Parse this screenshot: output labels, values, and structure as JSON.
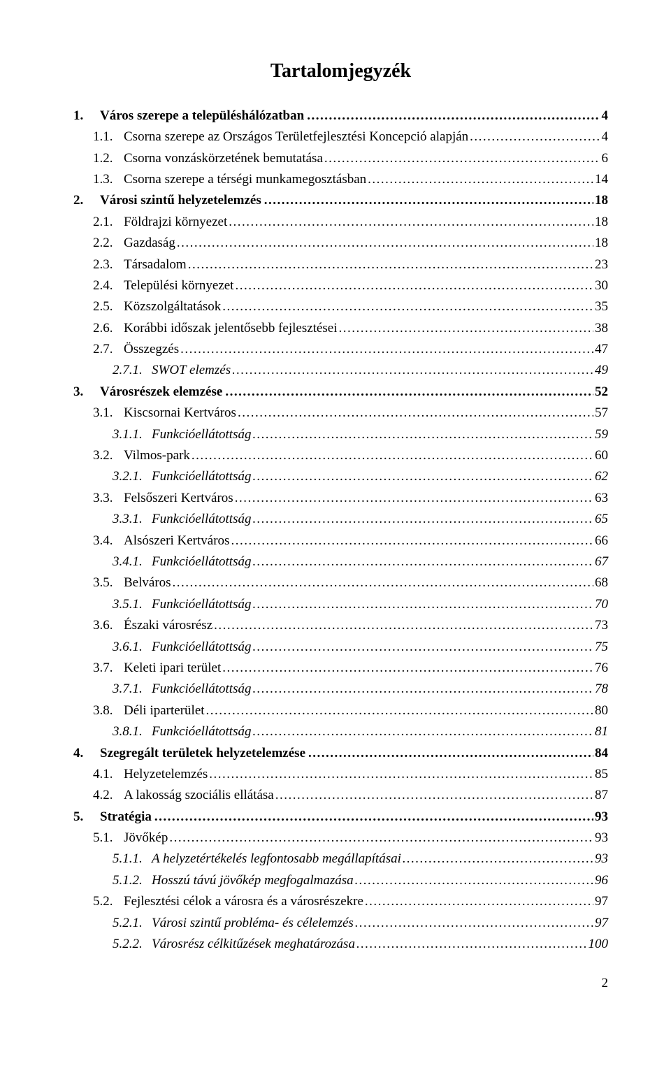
{
  "title": "Tartalomjegyzék",
  "page_number": "2",
  "entries": [
    {
      "level": 1,
      "num": "1.",
      "text": "Város szerepe a településhálózatban",
      "page": "4"
    },
    {
      "level": 2,
      "num": "1.1.",
      "text": "Csorna szerepe az Országos Területfejlesztési Koncepció alapján",
      "page": "4"
    },
    {
      "level": 2,
      "num": "1.2.",
      "text": "Csorna vonzáskörzetének bemutatása",
      "page": "6"
    },
    {
      "level": 2,
      "num": "1.3.",
      "text": "Csorna szerepe a térségi munkamegosztásban",
      "page": "14"
    },
    {
      "level": 1,
      "num": "2.",
      "text": "Városi szintű helyzetelemzés",
      "page": "18"
    },
    {
      "level": 2,
      "num": "2.1.",
      "text": "Földrajzi környezet",
      "page": "18"
    },
    {
      "level": 2,
      "num": "2.2.",
      "text": "Gazdaság",
      "page": "18"
    },
    {
      "level": 2,
      "num": "2.3.",
      "text": "Társadalom",
      "page": "23"
    },
    {
      "level": 2,
      "num": "2.4.",
      "text": "Települési környezet",
      "page": "30"
    },
    {
      "level": 2,
      "num": "2.5.",
      "text": "Közszolgáltatások",
      "page": "35"
    },
    {
      "level": 2,
      "num": "2.6.",
      "text": "Korábbi időszak jelentősebb fejlesztései",
      "page": "38"
    },
    {
      "level": 2,
      "num": "2.7.",
      "text": "Összegzés",
      "page": "47"
    },
    {
      "level": 3,
      "num": "2.7.1.",
      "text": "SWOT elemzés",
      "page": "49"
    },
    {
      "level": 1,
      "num": "3.",
      "text": "Városrészek elemzése",
      "page": "52"
    },
    {
      "level": 2,
      "num": "3.1.",
      "text": "Kiscsornai Kertváros",
      "page": "57"
    },
    {
      "level": 3,
      "num": "3.1.1.",
      "text": "Funkcióellátottság",
      "page": "59"
    },
    {
      "level": 2,
      "num": "3.2.",
      "text": "Vilmos-park",
      "page": "60"
    },
    {
      "level": 3,
      "num": "3.2.1.",
      "text": "Funkcióellátottság",
      "page": "62"
    },
    {
      "level": 2,
      "num": "3.3.",
      "text": "Felsőszeri Kertváros",
      "page": "63"
    },
    {
      "level": 3,
      "num": "3.3.1.",
      "text": "Funkcióellátottság",
      "page": "65"
    },
    {
      "level": 2,
      "num": "3.4.",
      "text": "Alsószeri Kertváros",
      "page": "66"
    },
    {
      "level": 3,
      "num": "3.4.1.",
      "text": "Funkcióellátottság",
      "page": "67"
    },
    {
      "level": 2,
      "num": "3.5.",
      "text": "Belváros",
      "page": "68"
    },
    {
      "level": 3,
      "num": "3.5.1.",
      "text": "Funkcióellátottság",
      "page": "70"
    },
    {
      "level": 2,
      "num": "3.6.",
      "text": "Északi városrész",
      "page": "73"
    },
    {
      "level": 3,
      "num": "3.6.1.",
      "text": "Funkcióellátottság",
      "page": "75"
    },
    {
      "level": 2,
      "num": "3.7.",
      "text": "Keleti ipari terület",
      "page": "76"
    },
    {
      "level": 3,
      "num": "3.7.1.",
      "text": "Funkcióellátottság",
      "page": "78"
    },
    {
      "level": 2,
      "num": "3.8.",
      "text": "Déli iparterület",
      "page": "80"
    },
    {
      "level": 3,
      "num": "3.8.1.",
      "text": "Funkcióellátottság",
      "page": "81"
    },
    {
      "level": 1,
      "num": "4.",
      "text": "Szegregált területek helyzetelemzése",
      "page": "84"
    },
    {
      "level": 2,
      "num": "4.1.",
      "text": "Helyzetelemzés",
      "page": "85"
    },
    {
      "level": 2,
      "num": "4.2.",
      "text": "A lakosság szociális ellátása",
      "page": "87"
    },
    {
      "level": 1,
      "num": "5.",
      "text": "Stratégia",
      "page": "93"
    },
    {
      "level": 2,
      "num": "5.1.",
      "text": "Jövőkép",
      "page": "93"
    },
    {
      "level": 3,
      "num": "5.1.1.",
      "text": "A helyzetértékelés legfontosabb megállapításai",
      "page": "93"
    },
    {
      "level": 3,
      "num": "5.1.2.",
      "text": "Hosszú távú jövőkép megfogalmazása",
      "page": "96"
    },
    {
      "level": 2,
      "num": "5.2.",
      "text": "Fejlesztési célok a városra és a városrészekre",
      "page": "97"
    },
    {
      "level": 3,
      "num": "5.2.1.",
      "text": "Városi szintű probléma- és célelemzés",
      "page": "97"
    },
    {
      "level": 3,
      "num": "5.2.2.",
      "text": "Városrész célkitűzések meghatározása",
      "page": "100"
    }
  ]
}
